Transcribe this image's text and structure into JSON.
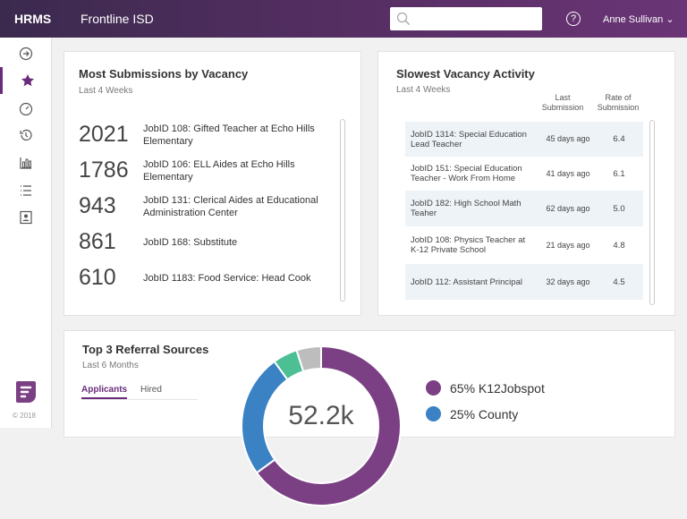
{
  "header": {
    "brand": "HRMS",
    "org": "Frontline ISD",
    "search_placeholder": "",
    "help_icon": "?",
    "user": "Anne Sullivan"
  },
  "sidebar": {
    "items": [
      {
        "icon": "arrow-circle-right-icon"
      },
      {
        "icon": "star-icon",
        "active": true
      },
      {
        "icon": "gauge-icon"
      },
      {
        "icon": "history-icon"
      },
      {
        "icon": "bar-chart-icon"
      },
      {
        "icon": "list-icon"
      },
      {
        "icon": "contact-card-icon"
      }
    ],
    "copyright": "© 2018"
  },
  "most": {
    "title": "Most Submissions by Vacancy",
    "subtitle": "Last 4 Weeks",
    "rows": [
      {
        "count": "2021",
        "label": "JobID 108: Gifted Teacher at Echo Hills Elementary"
      },
      {
        "count": "1786",
        "label": "JobID 106: ELL Aides at Echo Hills Elementary"
      },
      {
        "count": "943",
        "label": "JobID 131: Clerical Aides at Educational Administration Center"
      },
      {
        "count": "861",
        "label": "JobID 168: Substitute"
      },
      {
        "count": "610",
        "label": "JobID 1183: Food Service: Head Cook"
      }
    ]
  },
  "slowest": {
    "title": "Slowest Vacancy Activity",
    "subtitle": "Last 4 Weeks",
    "col_last": "Last Submission",
    "col_rate": "Rate of Submission",
    "rows": [
      {
        "job": "JobID 1314: Special Education Lead Teacher",
        "last": "45 days ago",
        "rate": "6.4"
      },
      {
        "job": "JobID 151: Special Education Teacher - Work From Home",
        "last": "41 days ago",
        "rate": "6.1"
      },
      {
        "job": "JobID 182: High School Math Teaher",
        "last": "62 days ago",
        "rate": "5.0"
      },
      {
        "job": "JobID 108: Physics Teacher at K-12 Private School",
        "last": "21 days ago",
        "rate": "4.8"
      },
      {
        "job": "JobID 112: Assistant Principal",
        "last": "32 days ago",
        "rate": "4.5"
      }
    ]
  },
  "referral": {
    "title": "Top 3 Referral Sources",
    "subtitle": "Last 6 Months",
    "tabs": [
      "Applicants",
      "Hired"
    ],
    "active_tab": "Applicants",
    "total": "52.2k",
    "segments": [
      {
        "label": "65% K12Jobspot",
        "value": 65,
        "color": "#7b3f84"
      },
      {
        "label": "25% County",
        "value": 25,
        "color": "#3a82c4"
      },
      {
        "value": 5,
        "color": "#4dbf94"
      },
      {
        "value": 5,
        "color": "#bdbdbd"
      }
    ]
  }
}
